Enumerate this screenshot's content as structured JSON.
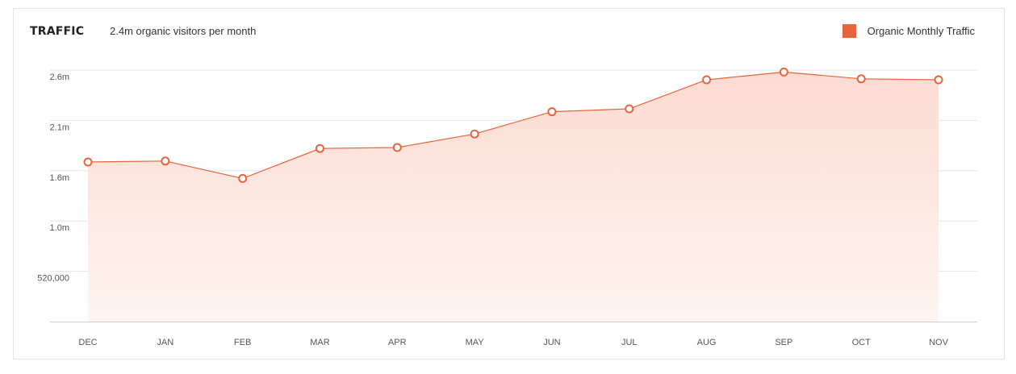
{
  "header": {
    "title": "TRAFFIC",
    "subtitle": "2.4m organic visitors per month"
  },
  "colors": {
    "accent": "#e8643c",
    "area_fill": "#fde1d8",
    "gridline": "#e6e6e6",
    "axis_line": "#cfcfcf"
  },
  "chart_data": {
    "type": "area",
    "title": "",
    "xlabel": "",
    "ylabel": "",
    "categories": [
      "DEC",
      "JAN",
      "FEB",
      "MAR",
      "APR",
      "MAY",
      "JUN",
      "JUL",
      "AUG",
      "SEP",
      "OCT",
      "NOV"
    ],
    "series": [
      {
        "name": "Organic Monthly Traffic",
        "values": [
          1650000,
          1660000,
          1480000,
          1790000,
          1800000,
          1940000,
          2170000,
          2200000,
          2500000,
          2580000,
          2510000,
          2500000
        ]
      }
    ],
    "yticks": [
      {
        "value": 520000,
        "label": "520,000"
      },
      {
        "value": 1040000,
        "label": "1.0m"
      },
      {
        "value": 1560000,
        "label": "1.6m"
      },
      {
        "value": 2080000,
        "label": "2.1m"
      },
      {
        "value": 2600000,
        "label": "2.6m"
      }
    ],
    "ylim": [
      0,
      2600000
    ],
    "grid": true,
    "legend": "top-right",
    "markers": "hollow-circle"
  }
}
